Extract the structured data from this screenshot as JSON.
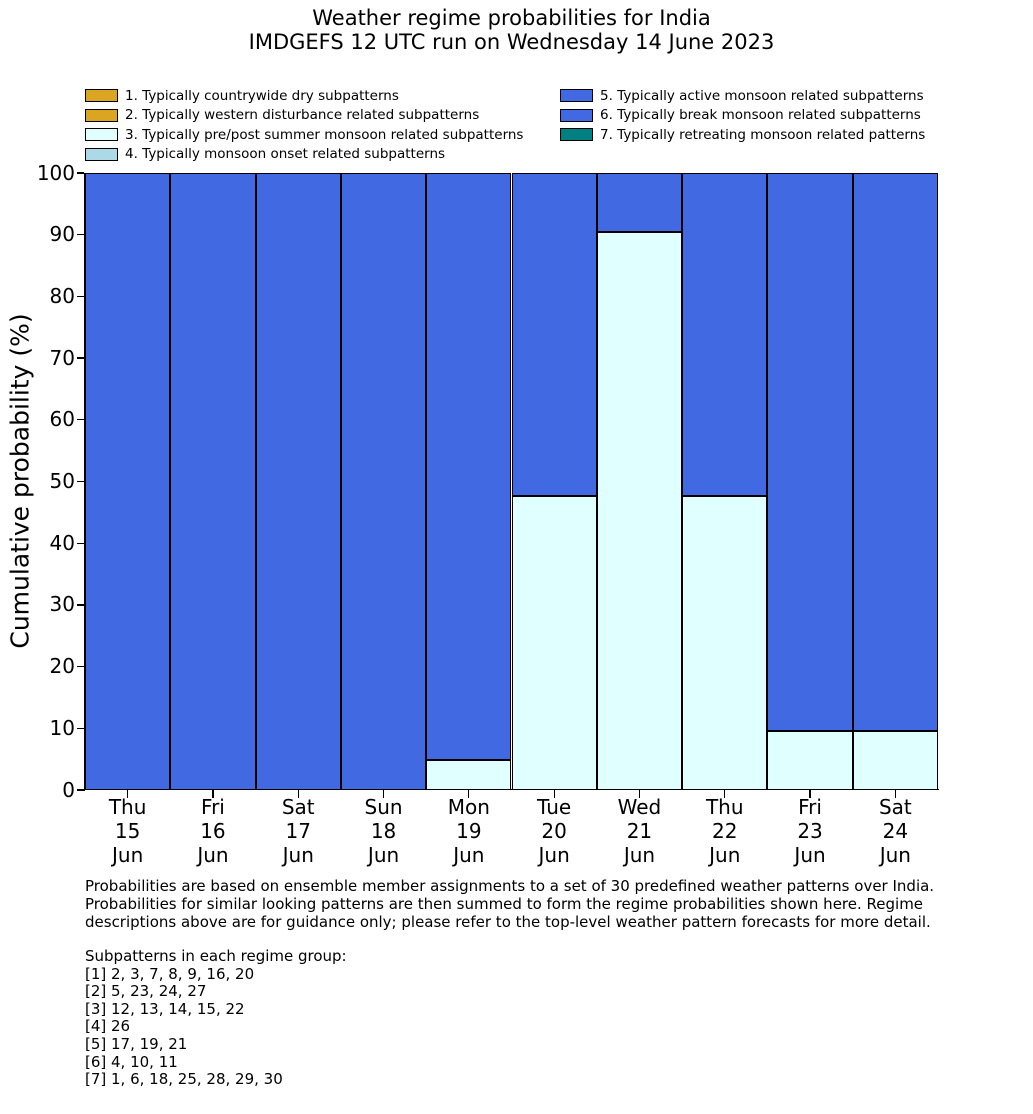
{
  "figure": {
    "title": "Weather regime probabilities for India",
    "subtitle": "IMDGEFS 12 UTC run on Wednesday 14 June 2023"
  },
  "legend": {
    "items": [
      {
        "label": "1. Typically countrywide dry subpatterns",
        "color": "#DAA520",
        "hatch": false
      },
      {
        "label": "2. Typically western disturbance related subpatterns",
        "color": "#DAA520",
        "hatch": true
      },
      {
        "label": "3. Typically pre/post summer monsoon related subpatterns",
        "color": "#E0FFFF",
        "hatch": false
      },
      {
        "label": "4. Typically monsoon onset related subpatterns",
        "color": "#ADD8E6",
        "hatch": false
      },
      {
        "label": "5. Typically active monsoon related subpatterns",
        "color": "#4169E1",
        "hatch": false
      },
      {
        "label": "6. Typically break monsoon related subpatterns",
        "color": "#4169E1",
        "hatch": true
      },
      {
        "label": "7. Typically retreating monsoon related patterns",
        "color": "#008080",
        "hatch": false
      }
    ]
  },
  "chart_data": {
    "type": "bar",
    "stacked": true,
    "title": "Weather regime probabilities for India",
    "subtitle": "IMDGEFS 12 UTC run on Wednesday 14 June 2023",
    "xlabel": "",
    "ylabel": "Cumulative probability (%)",
    "ylim": [
      0,
      100
    ],
    "yticks": [
      0,
      10,
      20,
      30,
      40,
      50,
      60,
      70,
      80,
      90,
      100
    ],
    "grid": false,
    "legend_position": "top",
    "categories": [
      {
        "day": "Thu",
        "date": "15",
        "month": "Jun"
      },
      {
        "day": "Fri",
        "date": "16",
        "month": "Jun"
      },
      {
        "day": "Sat",
        "date": "17",
        "month": "Jun"
      },
      {
        "day": "Sun",
        "date": "18",
        "month": "Jun"
      },
      {
        "day": "Mon",
        "date": "19",
        "month": "Jun"
      },
      {
        "day": "Tue",
        "date": "20",
        "month": "Jun"
      },
      {
        "day": "Wed",
        "date": "21",
        "month": "Jun"
      },
      {
        "day": "Thu",
        "date": "22",
        "month": "Jun"
      },
      {
        "day": "Fri",
        "date": "23",
        "month": "Jun"
      },
      {
        "day": "Sat",
        "date": "24",
        "month": "Jun"
      }
    ],
    "series": [
      {
        "name": "3. Typically pre/post summer monsoon related subpatterns",
        "color": "#E0FFFF",
        "hatch": false,
        "values": [
          0,
          0,
          0,
          0,
          4.8,
          47.6,
          90.5,
          47.6,
          9.5,
          9.5
        ]
      },
      {
        "name": "6. Typically break monsoon related subpatterns",
        "color": "#4169E1",
        "hatch": true,
        "values": [
          100,
          100,
          100,
          100,
          95.2,
          52.4,
          9.5,
          52.4,
          90.5,
          90.5
        ]
      }
    ]
  },
  "footnote": {
    "lines": [
      "Probabilities are based on ensemble member assignments to a set of 30 predefined weather patterns over India.",
      "Probabilities for similar looking patterns are then summed to form the regime probabilities shown here. Regime",
      "descriptions above are for guidance only; please refer to the top-level weather pattern forecasts for more detail."
    ]
  },
  "subpatterns": {
    "heading": "Subpatterns in each regime group:",
    "lines": [
      "[1] 2, 3, 7, 8, 9, 16, 20",
      "[2] 5, 23, 24, 27",
      "[3] 12, 13, 14, 15, 22",
      "[4] 26",
      "[5] 17, 19, 21",
      "[6] 4, 10, 11",
      "[7] 1, 6, 18, 25, 28, 29, 30"
    ]
  }
}
